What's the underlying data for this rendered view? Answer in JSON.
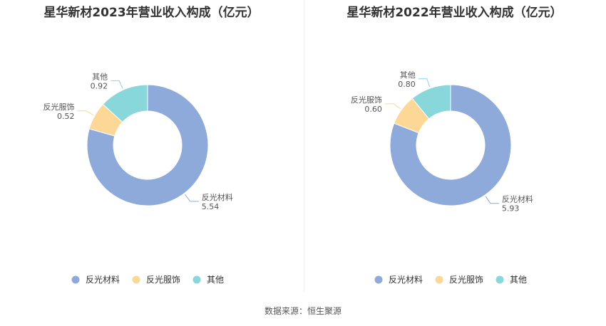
{
  "source": "数据来源：恒生聚源",
  "colors": [
    "#8eaadb",
    "#fcd795",
    "#88d7db"
  ],
  "chart_data": [
    {
      "type": "pie",
      "title": "星华新材2023年营业收入构成（亿元）",
      "categories": [
        "反光材料",
        "反光服饰",
        "其他"
      ],
      "values": [
        5.54,
        0.52,
        0.92
      ],
      "value_labels": [
        "5.54",
        "0.52",
        "0.92"
      ],
      "legend": [
        "反光材料",
        "反光服饰",
        "其他"
      ],
      "legend_position": "bottom"
    },
    {
      "type": "pie",
      "title": "星华新材2022年营业收入构成（亿元）",
      "categories": [
        "反光材料",
        "反光服饰",
        "其他"
      ],
      "values": [
        5.93,
        0.6,
        0.8
      ],
      "value_labels": [
        "5.93",
        "0.60",
        "0.80"
      ],
      "legend": [
        "反光材料",
        "反光服饰",
        "其他"
      ],
      "legend_position": "bottom"
    }
  ]
}
